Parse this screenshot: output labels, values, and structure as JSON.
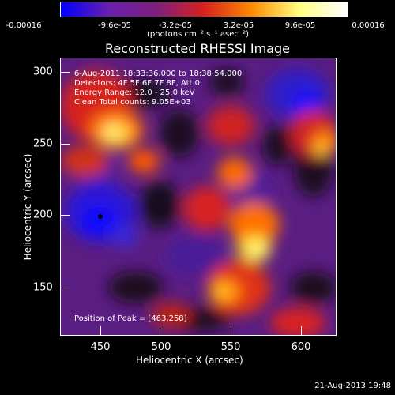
{
  "colorbar": {
    "tick_labels": [
      "-0.00016",
      "-9.6e-05",
      "-3.2e-05",
      "3.2e-05",
      "9.6e-05",
      "0.00016"
    ],
    "units_label": "(photons cm⁻² s⁻¹ asec⁻²)",
    "range": [
      -0.00016,
      0.00016
    ],
    "colors": [
      "#0000ff",
      "#6a1fb0",
      "#7f1f7f",
      "#d8201f",
      "#ff8a00",
      "#ffff80",
      "#ffffff"
    ]
  },
  "chart_data": {
    "type": "heatmap",
    "title": "Reconstructed RHESSI Image",
    "xlabel": "Heliocentric X (arcsec)",
    "ylabel": "Heliocentric Y (arcsec)",
    "xlim": [
      430,
      622
    ],
    "ylim": [
      115,
      308
    ],
    "xticks": [
      "450",
      "500",
      "550",
      "600"
    ],
    "yticks": [
      "300",
      "250",
      "200",
      "150"
    ],
    "peak": [
      463,
      258
    ]
  },
  "info": {
    "line1": "6-Aug-2011 18:33:36.000 to 18:38:54.000",
    "line2": "Detectors: 4F 5F 6F 7F 8F, Att 0",
    "line3": "Energy Range: 12.0 - 25.0 keV",
    "line4": "Clean     Total counts: 9.05E+03"
  },
  "peak_label": "Position of Peak = [463,258]",
  "footer_date": "21-Aug-2013 19:48"
}
